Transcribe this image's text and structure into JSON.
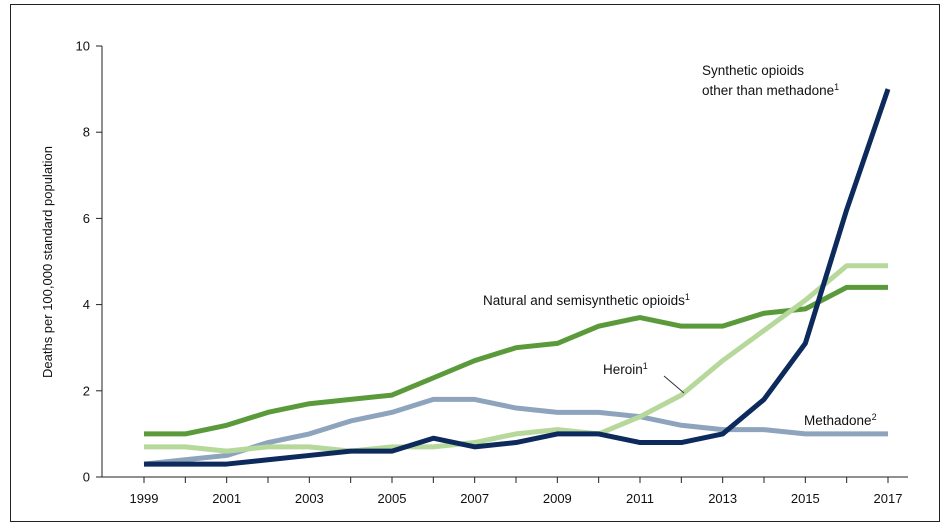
{
  "chart_data": {
    "type": "line",
    "title": "",
    "xlabel": "",
    "ylabel": "Deaths per 100,000 standard population",
    "xlim": [
      1999,
      2017
    ],
    "ylim": [
      0,
      10
    ],
    "x_ticks": [
      "1999",
      "2001",
      "2003",
      "2005",
      "2007",
      "2009",
      "2011",
      "2013",
      "2015",
      "2017"
    ],
    "y_ticks": [
      "0",
      "2",
      "4",
      "6",
      "8",
      "10"
    ],
    "x": [
      1999,
      2000,
      2001,
      2002,
      2003,
      2004,
      2005,
      2006,
      2007,
      2008,
      2009,
      2010,
      2011,
      2012,
      2013,
      2014,
      2015,
      2016,
      2017
    ],
    "grid": false,
    "series": [
      {
        "name": "Natural and semisynthetic opioids",
        "superscript": "1",
        "color": "#5a9a3a",
        "values": [
          1.0,
          1.0,
          1.2,
          1.5,
          1.7,
          1.8,
          1.9,
          2.3,
          2.7,
          3.0,
          3.1,
          3.5,
          3.7,
          3.5,
          3.5,
          3.8,
          3.9,
          4.4,
          4.4
        ]
      },
      {
        "name": "Methadone",
        "superscript": "2",
        "color": "#8ea4bc",
        "values": [
          0.3,
          0.4,
          0.5,
          0.8,
          1.0,
          1.3,
          1.5,
          1.8,
          1.8,
          1.6,
          1.5,
          1.5,
          1.4,
          1.2,
          1.1,
          1.1,
          1.0,
          1.0,
          1.0
        ]
      },
      {
        "name": "Heroin",
        "superscript": "1",
        "color": "#b6d89a",
        "values": [
          0.7,
          0.7,
          0.6,
          0.7,
          0.7,
          0.6,
          0.7,
          0.7,
          0.8,
          1.0,
          1.1,
          1.0,
          1.4,
          1.9,
          2.7,
          3.4,
          4.1,
          4.9,
          4.9
        ]
      },
      {
        "name": "Synthetic opioids other than methadone",
        "name_lines": [
          "Synthetic opioids",
          "other than methadone"
        ],
        "superscript": "1",
        "color": "#0d2a5c",
        "values": [
          0.3,
          0.3,
          0.3,
          0.4,
          0.5,
          0.6,
          0.6,
          0.9,
          0.7,
          0.8,
          1.0,
          1.0,
          0.8,
          0.8,
          1.0,
          1.8,
          3.1,
          6.2,
          9.0
        ]
      }
    ]
  }
}
